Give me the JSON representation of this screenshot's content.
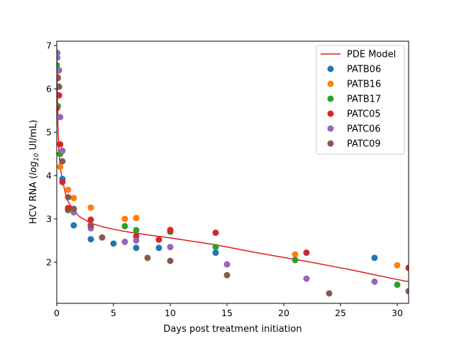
{
  "chart_data": {
    "type": "scatter",
    "xlabel": "Days post treatment initiation",
    "ylabel_prefix": "HCV RNA (",
    "ylabel_log": "log",
    "ylabel_sub": "10",
    "ylabel_suffix": " UI/mL)",
    "xlim": [
      0,
      31
    ],
    "ylim": [
      1.05,
      7.1
    ],
    "xticks": [
      0,
      5,
      10,
      15,
      20,
      25,
      30
    ],
    "yticks": [
      2,
      3,
      4,
      5,
      6,
      7
    ],
    "legend_position": "top-right",
    "model": {
      "name": "PDE Model",
      "color": "#e31a1c",
      "points": [
        [
          0,
          6.45
        ],
        [
          0.05,
          5.9
        ],
        [
          0.1,
          5.2
        ],
        [
          0.15,
          4.75
        ],
        [
          0.2,
          4.5
        ],
        [
          0.3,
          4.2
        ],
        [
          0.5,
          3.9
        ],
        [
          0.75,
          3.6
        ],
        [
          1,
          3.4
        ],
        [
          1.5,
          3.2
        ],
        [
          2,
          3.05
        ],
        [
          3,
          2.9
        ],
        [
          4,
          2.82
        ],
        [
          5,
          2.76
        ],
        [
          6,
          2.71
        ],
        [
          8,
          2.63
        ],
        [
          10,
          2.56
        ],
        [
          12,
          2.48
        ],
        [
          14,
          2.4
        ],
        [
          16,
          2.3
        ],
        [
          18,
          2.2
        ],
        [
          20,
          2.11
        ],
        [
          22,
          2.02
        ],
        [
          24,
          1.92
        ],
        [
          26,
          1.82
        ],
        [
          28,
          1.71
        ],
        [
          30,
          1.6
        ],
        [
          31,
          1.55
        ]
      ]
    },
    "series": [
      {
        "name": "PATB06",
        "color": "#1f77b4",
        "points": [
          [
            0,
            6.3
          ],
          [
            0.5,
            3.92
          ],
          [
            1.5,
            2.85
          ],
          [
            3,
            2.53
          ],
          [
            5,
            2.43
          ],
          [
            7,
            2.33
          ],
          [
            9,
            2.33
          ],
          [
            14,
            2.22
          ],
          [
            21,
            2.05
          ],
          [
            28,
            2.1
          ]
        ]
      },
      {
        "name": "PATB16",
        "color": "#ff7f0e",
        "points": [
          [
            0,
            6.3
          ],
          [
            0.3,
            4.2
          ],
          [
            1,
            3.67
          ],
          [
            1.5,
            3.48
          ],
          [
            3,
            3.26
          ],
          [
            6,
            3.0
          ],
          [
            7,
            3.02
          ],
          [
            10,
            2.75
          ],
          [
            21,
            2.18
          ],
          [
            30,
            1.93
          ]
        ]
      },
      {
        "name": "PATB17",
        "color": "#2ca02c",
        "points": [
          [
            0,
            6.55
          ],
          [
            0.1,
            5.6
          ],
          [
            0.3,
            4.5
          ],
          [
            1,
            3.2
          ],
          [
            3,
            2.85
          ],
          [
            6,
            2.83
          ],
          [
            7,
            2.74
          ],
          [
            10,
            2.7
          ],
          [
            14,
            2.35
          ],
          [
            21,
            2.05
          ],
          [
            30,
            1.48
          ]
        ]
      },
      {
        "name": "PATC05",
        "color": "#d62728",
        "points": [
          [
            0,
            5.55
          ],
          [
            0.2,
            5.85
          ],
          [
            0.3,
            4.72
          ],
          [
            0.5,
            3.85
          ],
          [
            1,
            3.25
          ],
          [
            3,
            2.98
          ],
          [
            7,
            2.6
          ],
          [
            9,
            2.52
          ],
          [
            10,
            2.73
          ],
          [
            14,
            2.68
          ],
          [
            22,
            2.22
          ],
          [
            31,
            1.87
          ]
        ]
      },
      {
        "name": "PATC06",
        "color": "#9467bd",
        "points": [
          [
            0.05,
            6.83
          ],
          [
            0.05,
            6.72
          ],
          [
            0.2,
            6.43
          ],
          [
            0.3,
            5.35
          ],
          [
            0.5,
            4.57
          ],
          [
            1.5,
            3.15
          ],
          [
            3,
            2.78
          ],
          [
            6,
            2.47
          ],
          [
            7,
            2.5
          ],
          [
            10,
            2.35
          ],
          [
            15,
            1.95
          ],
          [
            22,
            1.62
          ],
          [
            28,
            1.55
          ]
        ]
      },
      {
        "name": "PATC09",
        "color": "#8c564b",
        "points": [
          [
            0.1,
            6.25
          ],
          [
            0.2,
            6.05
          ],
          [
            0.5,
            4.33
          ],
          [
            1,
            3.5
          ],
          [
            1.5,
            3.23
          ],
          [
            3,
            2.85
          ],
          [
            4,
            2.57
          ],
          [
            8,
            2.1
          ],
          [
            10,
            2.03
          ],
          [
            15,
            1.7
          ],
          [
            24,
            1.28
          ],
          [
            31,
            1.33
          ]
        ]
      }
    ]
  }
}
